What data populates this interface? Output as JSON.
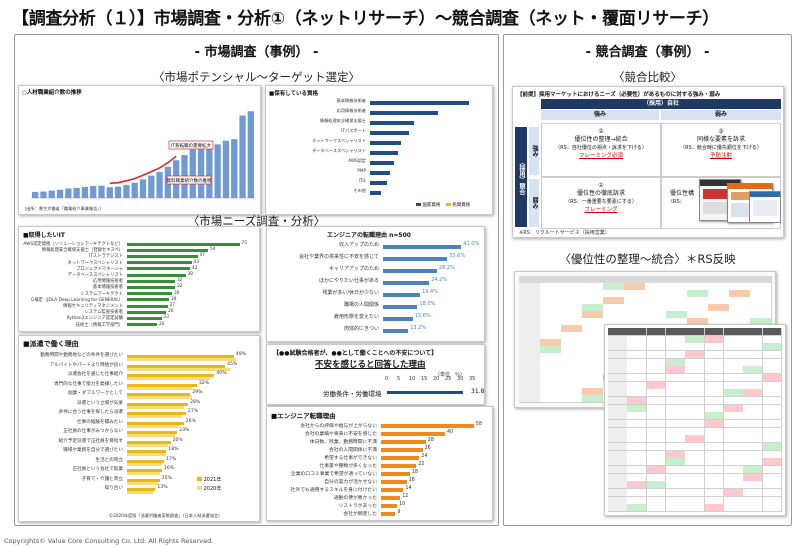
{
  "page_title": "【調査分析（１）】市場調査・分析①（ネットリサーチ）～競合調査（ネット・覆面リサーチ）",
  "left_panel": {
    "heading": "- 市場調査（事例） -",
    "subtitle1": "〈市場ポテンシャル～ターゲット選定〉",
    "subtitle2": "〈市場ニーズ調査・分析〉",
    "chart1_title": "○人材職業紹介数の推移",
    "chart1_values": [
      2000,
      2100,
      2400,
      2700,
      3100,
      3300,
      3600,
      3900,
      4000,
      3500,
      3700,
      4300,
      5000,
      6100,
      7300,
      8500,
      10200,
      12300,
      14000,
      15900,
      16500,
      17100,
      17500,
      18700,
      19200,
      26900,
      28300
    ],
    "chart1_callout1": "IT系転職の需要拡大",
    "chart1_callout2": "無料職業紹介数の推移",
    "chart1_footer": "（出所：厚生労働省「職業紹介事業報告」）",
    "chart2_title": "■保有している資格",
    "chart2_labels": [
      "基本情報技術者",
      "応用情報技術者",
      "情報処理安全確保支援士",
      "ITパスポート",
      "ネットワークスペシャリスト",
      "データベーススペシャリスト",
      "AWS認定",
      "PMP",
      "ITIL",
      "その他"
    ],
    "chart2_values": [
      90,
      62,
      40,
      35,
      28,
      25,
      22,
      18,
      15,
      10
    ],
    "chart2_legend": [
      "国家資格",
      "民間資格"
    ],
    "chart3_title": "■取得したいIT",
    "chart3_labels": [
      "AWS認定資格（ソリューションアーキテクトなど）",
      "情報処理安全確保支援士（登録セキスペ）",
      "ITストラテジスト",
      "ネットワークスペシャリスト",
      "プロジェクトマネージャ",
      "データベーススペシャリスト",
      "応用情報技術者",
      "基本情報技術者",
      "システムアーキテクト",
      "G検定（JDLA Deep Learning for GENERAL）",
      "情報セキュリティマネジメント",
      "システム監査技術者",
      "Python3エンジニア認定試験",
      "技術士（情報工学部門）"
    ],
    "chart3_values": [
      75,
      54,
      47,
      43,
      42,
      39,
      32,
      32,
      30,
      28,
      27,
      26,
      23,
      20
    ],
    "chart4_title": "■派遣で働く理由",
    "chart4_labels": [
      "勤務時間や勤務地などの条件を選びたい",
      "アルバイトやパートより時給が良い",
      "派遣会社を通じた仕事紹介",
      "専門的な仕事で能力を発揮したい",
      "副業・ダブルワークとして",
      "派遣という立場が気楽",
      "条件に合う仕事を探したら派遣",
      "仕事の経験を積みたい",
      "正社員の仕事がみつからない",
      "紹介予定派遣で正社員を目指す",
      "職場や業務を自分で選びたい",
      "生活との両立",
      "正社員という会社で就業",
      "子育て・介護と両立",
      "知り合い"
    ],
    "chart4_values_a": [
      49,
      45,
      40,
      32,
      29,
      28,
      27,
      26,
      23,
      20,
      18,
      17,
      16,
      15,
      13
    ],
    "chart4_values_b": [
      50,
      47,
      38,
      30,
      30,
      26,
      25,
      24,
      22,
      19,
      18,
      16,
      15,
      14,
      12
    ],
    "chart4_legend": [
      "2021年",
      "2020年"
    ],
    "chart4_footer": "©2020年度版「派遣労働者実態調査」（日本人材派遣協会）",
    "chart5_title": "エンジニアの転職理由  n=500",
    "chart5_labels": [
      "収入アップのため",
      "会社や業界の将来性に不安を感じて",
      "キャリアアップのため",
      "ほかにやりたい仕事がある",
      "残業が多い/休日が少ない",
      "職場の人間関係",
      "雇用形態を変えたい",
      "肉体的にきつい"
    ],
    "chart5_values": [
      41.0,
      33.6,
      28.2,
      24.2,
      19.4,
      18.0,
      15.6,
      13.2
    ],
    "chart5_value_labels": [
      "41.0%",
      "33.6%",
      "28.2%",
      "24.2%",
      "19.4%",
      "18.0%",
      "15.6%",
      "13.2%"
    ],
    "chart6_title": "【●●試験合格者が、●●として働くことへの不安について】",
    "chart6_heading": "不安を感じると回答した理由",
    "chart6_unit": "（単位　％）",
    "chart6_ticks": [
      "0",
      "5",
      "10",
      "15",
      "20",
      "25",
      "30",
      "35"
    ],
    "chart6_row": "労働条件・労働環境",
    "chart6_value": "31.8",
    "chart7_title": "■エンジニア転職理由",
    "chart7_labels": [
      "会社からの評価や給与が上がらない",
      "会社の業績や将来に不安を感じた",
      "体日数、残業、勤務時間に不満",
      "会社の人間関係に不満",
      "希望する仕事ができない",
      "仕事量や種類が多くなった",
      "企業の口コミ事業で希望が適っていない",
      "自分の実力が活かせない",
      "社外でも通用するスキルを身に付けたい",
      "通勤の便が悪かった",
      "リストラがあった",
      "会社が倒産した"
    ],
    "chart7_values": [
      58,
      40,
      28,
      26,
      24,
      22,
      18,
      16,
      14,
      12,
      10,
      9
    ],
    "chart7_value_labels": [
      "58",
      "40",
      "28",
      "26",
      "24",
      "22",
      "18",
      "16",
      "14",
      "12",
      "10",
      "9"
    ]
  },
  "right_panel": {
    "heading": "- 競合調査（事例） -",
    "subtitle1": "〈競合比較〉",
    "subtitle2": "〈優位性の整理～統合〉＊RS反映",
    "matrix_title": "【前提】採用マーケットにおけるニーズ（必要性）があるものに対する強み・弱み",
    "matrix_company": "（採用）自社",
    "col_strong": "強み",
    "col_weak": "弱み",
    "side_label": "（採用）競合",
    "row_strong": "強み",
    "row_weak": "弱み",
    "q2_num": "②",
    "q2_text": "優位性の整理→統合",
    "q2_note": "（RS：自社優位の視点・訴求を下げる）",
    "q2_red": "フレーミング必須",
    "q3_num": "③",
    "q3_text": "同様な要素を訴求",
    "q3_note": "（RS：競合時に優先順位を下げる）",
    "q3_red": "予防注射",
    "q1_num": "①",
    "q1_text": "優位性の徹底訴求",
    "q1_note": "（RS：一番重要な要素にする）",
    "q1_red": "フレーミング",
    "q4_text": "優位性構",
    "q4_note": "（RS：",
    "matrix_footer": "※RS：リクルートサービス（採用営業）"
  },
  "copyright": "Copyrights© Value Core Consulting Co. Ltd.  All Rights Reserved."
}
